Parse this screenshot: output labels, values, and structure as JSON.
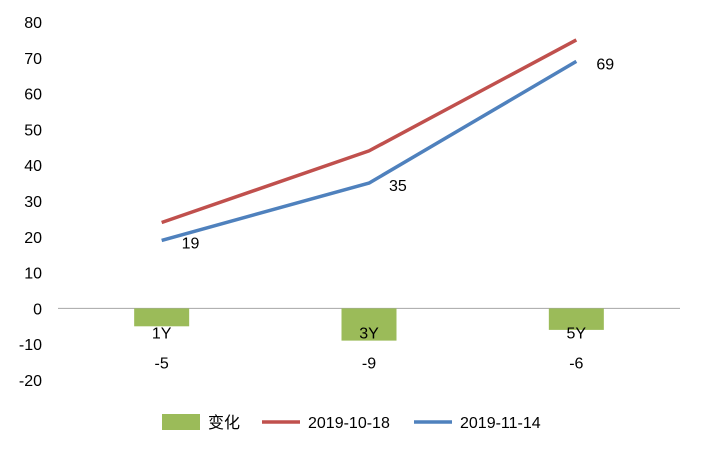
{
  "chart_data": {
    "type": "bar+line",
    "categories": [
      "1Y",
      "3Y",
      "5Y"
    ],
    "series": [
      {
        "name": "变化",
        "kind": "bar",
        "color": "#9bbb59",
        "values": [
          -5,
          -9,
          -6
        ]
      },
      {
        "name": "2019-10-18",
        "kind": "line",
        "color": "#c0504d",
        "values": [
          24,
          44,
          75
        ]
      },
      {
        "name": "2019-11-14",
        "kind": "line",
        "color": "#4f81bd",
        "values": [
          19,
          35,
          69
        ]
      }
    ],
    "data_labels": {
      "bar": [
        "-5",
        "-9",
        "-6"
      ],
      "line_2019_11_14": [
        "19",
        "35",
        "69"
      ]
    },
    "y_ticks": [
      "80",
      "70",
      "60",
      "50",
      "40",
      "30",
      "20",
      "10",
      "0",
      "-10",
      "-20"
    ],
    "y_tick_values": [
      80,
      70,
      60,
      50,
      40,
      30,
      20,
      10,
      0,
      -10,
      -20
    ],
    "ylim": [
      -20,
      80
    ],
    "grid": false,
    "legend_position": "bottom"
  }
}
